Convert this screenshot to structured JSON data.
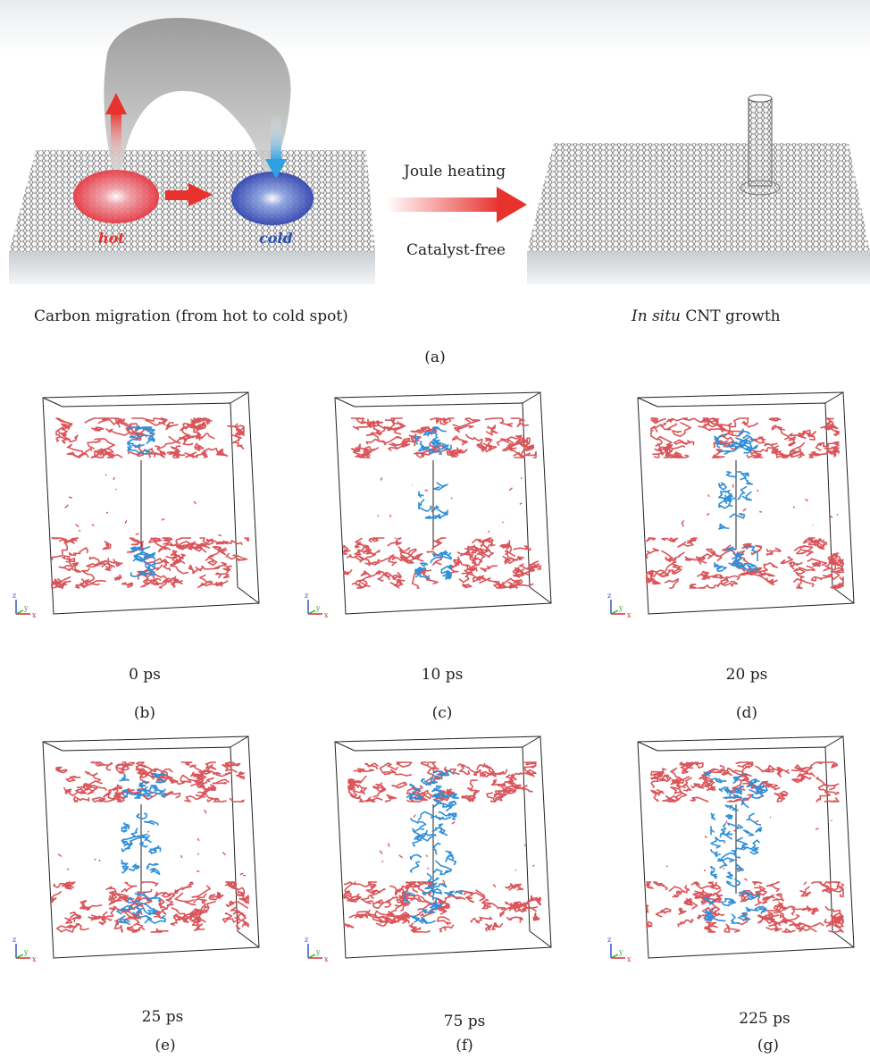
{
  "panel_a": {
    "hot_label": "hot",
    "cold_label": "cold",
    "arrow_top": "Joule heating",
    "arrow_bottom": "Catalyst-free",
    "left_caption": "Carbon migration (from hot to cold spot)",
    "right_caption_italic": "In situ",
    "right_caption_rest": " CNT growth",
    "label": "(a)"
  },
  "panels": [
    {
      "time": "0 ps",
      "label": "(b)",
      "bridge": 0.0
    },
    {
      "time": "10 ps",
      "label": "(c)",
      "bridge": 0.25
    },
    {
      "time": "20 ps",
      "label": "(d)",
      "bridge": 0.45
    },
    {
      "time": "25 ps",
      "label": "(e)",
      "bridge": 0.6
    },
    {
      "time": "75 ps",
      "label": "(f)",
      "bridge": 0.85
    },
    {
      "time": "225 ps",
      "label": "(g)",
      "bridge": 1.0
    }
  ],
  "axes": {
    "z": "z",
    "y": "y",
    "x": "x"
  },
  "colors": {
    "red": "#d9555a",
    "blue": "#2f8fd8",
    "hot": "#e8322e",
    "cold": "#2a4fb0"
  }
}
